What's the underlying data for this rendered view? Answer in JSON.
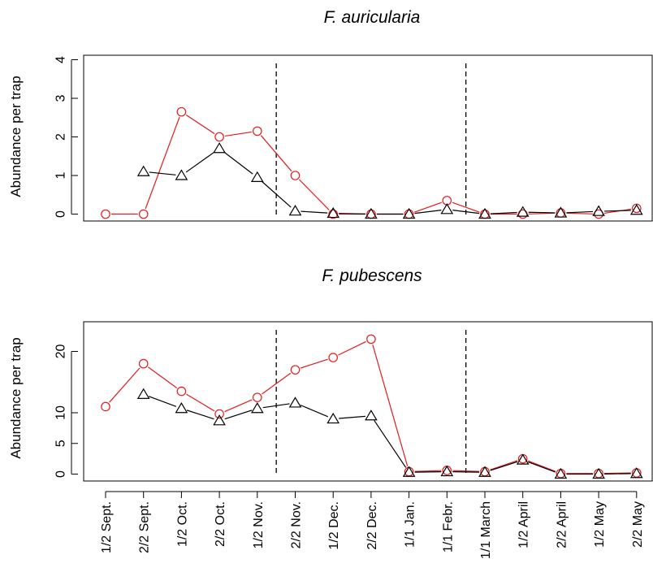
{
  "chart_data": [
    {
      "type": "line",
      "title": "F. auricularia",
      "ylabel": "Abundance per trap",
      "xlabel": "",
      "categories": [
        "1/2 Sept.",
        "2/2 Sept.",
        "1/2 Oct.",
        "2/2 Oct.",
        "1/2 Nov.",
        "2/2 Nov.",
        "1/2 Dec.",
        "2/2 Dec.",
        "1/1 Jan.",
        "1/1 Febr.",
        "1/1 March",
        "1/2 April",
        "2/2 April",
        "1/2 May",
        "2/2 May"
      ],
      "ylim": [
        0,
        4
      ],
      "yticks": [
        0,
        1,
        2,
        3,
        4
      ],
      "vlines_after_category": [
        "1/2 Nov.",
        "1/1 Febr."
      ],
      "series": [
        {
          "marker": "circle",
          "color": "#e41a1c",
          "values": [
            0,
            0,
            2.65,
            2.0,
            2.15,
            1.0,
            0,
            0,
            0,
            0.35,
            0,
            0,
            0.03,
            0,
            0.15
          ]
        },
        {
          "marker": "triangle",
          "color": "#000000",
          "values": [
            null,
            1.1,
            1.0,
            1.7,
            0.95,
            0.08,
            0.02,
            0,
            0,
            0.12,
            0,
            0.05,
            0.03,
            0.07,
            0.1
          ]
        }
      ]
    },
    {
      "type": "line",
      "title": "F. pubescens",
      "ylabel": "Abundance per trap",
      "xlabel": "",
      "categories": [
        "1/2 Sept.",
        "2/2 Sept.",
        "1/2 Oct.",
        "2/2 Oct.",
        "1/2 Nov.",
        "2/2 Nov.",
        "1/2 Dec.",
        "2/2 Dec.",
        "1/1 Jan.",
        "1/1 Febr.",
        "1/1 March",
        "1/2 April",
        "2/2 April",
        "1/2 May",
        "2/2 May"
      ],
      "ylim": [
        0,
        26
      ],
      "yticks": [
        0,
        5,
        10,
        20
      ],
      "vlines_after_category": [
        "1/2 Nov.",
        "1/1 Febr."
      ],
      "series": [
        {
          "marker": "circle",
          "color": "#e41a1c",
          "values": [
            11,
            18,
            13.5,
            9.8,
            12.5,
            17,
            19,
            22,
            0.4,
            0.6,
            0.4,
            2.5,
            0.1,
            0.1,
            0.2
          ]
        },
        {
          "marker": "triangle",
          "color": "#000000",
          "values": [
            null,
            13,
            10.7,
            8.7,
            10.7,
            11.6,
            9,
            9.5,
            0.3,
            0.4,
            0.3,
            2.3,
            0,
            0,
            0.1
          ]
        }
      ]
    }
  ]
}
